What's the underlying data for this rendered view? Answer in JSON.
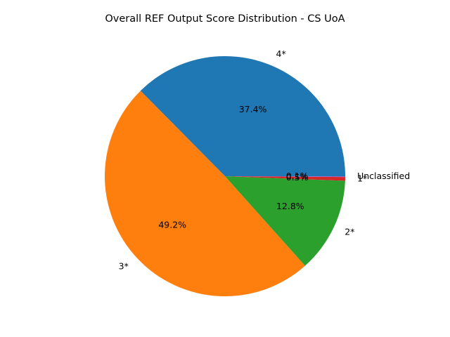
{
  "chart_data": {
    "type": "pie",
    "title": "Overall REF Output Score Distribution - CS UoA",
    "slices": [
      {
        "label": "4*",
        "value": 37.4,
        "pct_label": "37.4%",
        "color": "#1f77b4"
      },
      {
        "label": "3*",
        "value": 49.2,
        "pct_label": "49.2%",
        "color": "#ff7f0e"
      },
      {
        "label": "2*",
        "value": 12.8,
        "pct_label": "12.8%",
        "color": "#2ca02c"
      },
      {
        "label": "1*",
        "value": 0.5,
        "pct_label": "0.5%",
        "color": "#d62728"
      },
      {
        "label": "Unclassified",
        "value": 0.1,
        "pct_label": "0.1%",
        "color": "#9467bd"
      }
    ],
    "start_angle_deg": 0,
    "direction": "counterclockwise"
  }
}
